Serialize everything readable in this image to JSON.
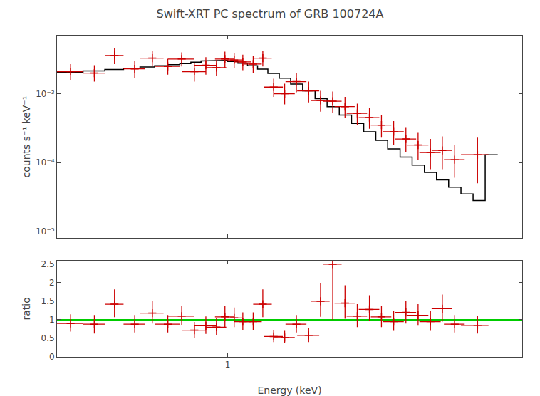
{
  "chart_data": [
    {
      "type": "line",
      "title": "Swift-XRT PC spectrum of GRB 100724A",
      "ylabel": "counts s⁻¹ keV⁻¹",
      "log": true,
      "xlim": [
        0.28,
        9.0
      ],
      "ylim": [
        8e-06,
        0.007
      ],
      "xticks": [
        1
      ],
      "yticks": [
        {
          "value": 1e-05,
          "label": "10⁻⁵"
        },
        {
          "value": 0.0001,
          "label": "10⁻⁴"
        },
        {
          "value": 0.001,
          "label": "10⁻³"
        }
      ],
      "grid": false,
      "tick_labels": "y",
      "series": [
        {
          "type": "step",
          "color": "#000000",
          "bins_lo": [
            0.28,
            0.34,
            0.4,
            0.46,
            0.52,
            0.58,
            0.64,
            0.7,
            0.76,
            0.82,
            0.88,
            0.94,
            1.0,
            1.08,
            1.16,
            1.25,
            1.35,
            1.47,
            1.6,
            1.75,
            1.92,
            2.1,
            2.3,
            2.52,
            2.76,
            3.02,
            3.3,
            3.62,
            3.96,
            4.34,
            4.75,
            5.2,
            5.7,
            6.24,
            6.83
          ],
          "bins_hi": [
            0.34,
            0.4,
            0.46,
            0.52,
            0.58,
            0.64,
            0.7,
            0.76,
            0.82,
            0.88,
            0.94,
            1.0,
            1.08,
            1.16,
            1.25,
            1.35,
            1.47,
            1.6,
            1.75,
            1.92,
            2.1,
            2.3,
            2.52,
            2.76,
            3.02,
            3.3,
            3.62,
            3.96,
            4.34,
            4.75,
            5.2,
            5.7,
            6.24,
            6.83,
            7.5
          ],
          "values": [
            0.00205,
            0.00215,
            0.00225,
            0.00235,
            0.00245,
            0.00255,
            0.00265,
            0.00275,
            0.00288,
            0.003,
            0.00305,
            0.00305,
            0.00295,
            0.00278,
            0.00255,
            0.00228,
            0.00198,
            0.00168,
            0.00138,
            0.0011,
            0.00085,
            0.00065,
            0.00049,
            0.00037,
            0.00028,
            0.00021,
            0.000158,
            0.00012,
            9.2e-05,
            7.2e-05,
            5.6e-05,
            4.4e-05,
            3.5e-05,
            2.8e-05,
            0.00013
          ]
        },
        {
          "type": "scatter",
          "marker": "plus",
          "color": "#cc0000",
          "x": [
            0.31,
            0.37,
            0.43,
            0.5,
            0.57,
            0.64,
            0.71,
            0.78,
            0.85,
            0.92,
            0.98,
            1.05,
            1.12,
            1.21,
            1.3,
            1.41,
            1.53,
            1.67,
            1.83,
            2.0,
            2.19,
            2.4,
            2.63,
            2.88,
            3.15,
            3.45,
            3.78,
            4.14,
            4.54,
            4.96,
            5.44,
            6.45
          ],
          "xerr_lo": [
            0.03,
            0.03,
            0.03,
            0.04,
            0.05,
            0.06,
            0.07,
            0.07,
            0.07,
            0.07,
            0.07,
            0.06,
            0.07,
            0.08,
            0.09,
            0.1,
            0.12,
            0.13,
            0.15,
            0.14,
            0.15,
            0.18,
            0.2,
            0.22,
            0.24,
            0.27,
            0.3,
            0.33,
            0.36,
            0.38,
            0.42,
            0.75
          ],
          "xerr_hi": [
            0.03,
            0.03,
            0.03,
            0.04,
            0.05,
            0.06,
            0.07,
            0.07,
            0.07,
            0.07,
            0.07,
            0.06,
            0.07,
            0.08,
            0.09,
            0.1,
            0.12,
            0.13,
            0.15,
            0.14,
            0.15,
            0.18,
            0.2,
            0.22,
            0.24,
            0.27,
            0.3,
            0.33,
            0.36,
            0.38,
            0.42,
            0.55
          ],
          "values": [
            0.0021,
            0.002,
            0.0036,
            0.0023,
            0.0033,
            0.0025,
            0.0032,
            0.0021,
            0.0026,
            0.0024,
            0.0032,
            0.0031,
            0.0029,
            0.0027,
            0.0033,
            0.00125,
            0.001,
            0.0015,
            0.0011,
            0.0008,
            0.00078,
            0.00065,
            0.00052,
            0.00045,
            0.00035,
            0.00028,
            0.00022,
            0.00018,
            0.00014,
            0.00015,
            0.00011,
            0.00013
          ],
          "yerr_lo": [
            0.0005,
            0.0005,
            0.0009,
            0.0006,
            0.0008,
            0.0006,
            0.0007,
            0.0006,
            0.0007,
            0.0006,
            0.0008,
            0.0007,
            0.0007,
            0.0007,
            0.0008,
            0.00035,
            0.0003,
            0.00045,
            0.00035,
            0.00025,
            0.00025,
            0.0002,
            0.00017,
            0.00014,
            0.00012,
            0.0001,
            8e-05,
            7e-05,
            6e-05,
            7e-05,
            5e-05,
            8e-05
          ],
          "yerr_hi": [
            0.0006,
            0.0006,
            0.001,
            0.0007,
            0.0009,
            0.0007,
            0.0008,
            0.0007,
            0.0008,
            0.0007,
            0.0009,
            0.0008,
            0.0008,
            0.0008,
            0.0009,
            0.0004,
            0.0004,
            0.0005,
            0.0004,
            0.0003,
            0.0003,
            0.00025,
            0.0002,
            0.00017,
            0.00014,
            0.00012,
            0.0001,
            9e-05,
            8e-05,
            9e-05,
            7e-05,
            0.0001
          ]
        }
      ]
    },
    {
      "type": "scatter",
      "xlabel": "Energy (keV)",
      "ylabel": "ratio",
      "log": "x",
      "xlim": [
        0.28,
        9.0
      ],
      "ylim": [
        0,
        2.6
      ],
      "xticks": [
        1
      ],
      "yticks": [
        0,
        0.5,
        1.0,
        1.5,
        2.0,
        2.5
      ],
      "grid": false,
      "reference_lines": [
        {
          "value": 1.0,
          "color": "#00cc00"
        }
      ],
      "series": [
        {
          "type": "scatter",
          "marker": "plus",
          "color": "#cc0000",
          "x": [
            0.31,
            0.37,
            0.43,
            0.5,
            0.57,
            0.64,
            0.71,
            0.78,
            0.85,
            0.92,
            0.98,
            1.05,
            1.12,
            1.21,
            1.3,
            1.41,
            1.53,
            1.67,
            1.83,
            2.0,
            2.19,
            2.4,
            2.63,
            2.88,
            3.15,
            3.45,
            3.78,
            4.14,
            4.54,
            4.96,
            5.44,
            6.45
          ],
          "xerr_lo": [
            0.03,
            0.03,
            0.03,
            0.04,
            0.05,
            0.06,
            0.07,
            0.07,
            0.07,
            0.07,
            0.07,
            0.06,
            0.07,
            0.08,
            0.09,
            0.1,
            0.12,
            0.13,
            0.15,
            0.14,
            0.15,
            0.18,
            0.2,
            0.22,
            0.24,
            0.27,
            0.3,
            0.33,
            0.36,
            0.38,
            0.42,
            0.75
          ],
          "xerr_hi": [
            0.03,
            0.03,
            0.03,
            0.04,
            0.05,
            0.06,
            0.07,
            0.07,
            0.07,
            0.07,
            0.07,
            0.06,
            0.07,
            0.08,
            0.09,
            0.1,
            0.12,
            0.13,
            0.15,
            0.14,
            0.15,
            0.18,
            0.2,
            0.22,
            0.24,
            0.27,
            0.3,
            0.33,
            0.36,
            0.38,
            0.42,
            0.55
          ],
          "values": [
            0.9,
            0.88,
            1.42,
            0.88,
            1.18,
            0.88,
            1.1,
            0.72,
            0.84,
            0.8,
            1.08,
            1.05,
            0.95,
            0.95,
            1.42,
            0.55,
            0.52,
            0.88,
            0.58,
            1.5,
            2.5,
            1.45,
            1.1,
            1.28,
            1.08,
            0.95,
            1.2,
            1.12,
            0.95,
            1.3,
            0.88,
            0.85
          ],
          "yerr_lo": [
            0.22,
            0.25,
            0.35,
            0.22,
            0.28,
            0.22,
            0.25,
            0.22,
            0.22,
            0.22,
            0.28,
            0.25,
            0.22,
            0.22,
            0.35,
            0.15,
            0.15,
            0.22,
            0.18,
            0.42,
            1.5,
            0.42,
            0.3,
            0.32,
            0.28,
            0.25,
            0.3,
            0.28,
            0.25,
            0.35,
            0.22,
            0.22
          ],
          "yerr_hi": [
            0.25,
            0.25,
            0.4,
            0.25,
            0.32,
            0.25,
            0.28,
            0.22,
            0.25,
            0.25,
            0.3,
            0.28,
            0.25,
            0.25,
            0.4,
            0.18,
            0.18,
            0.25,
            0.2,
            0.5,
            0.1,
            0.48,
            0.32,
            0.38,
            0.3,
            0.28,
            0.32,
            0.3,
            0.28,
            0.38,
            0.25,
            0.25
          ]
        }
      ]
    }
  ]
}
